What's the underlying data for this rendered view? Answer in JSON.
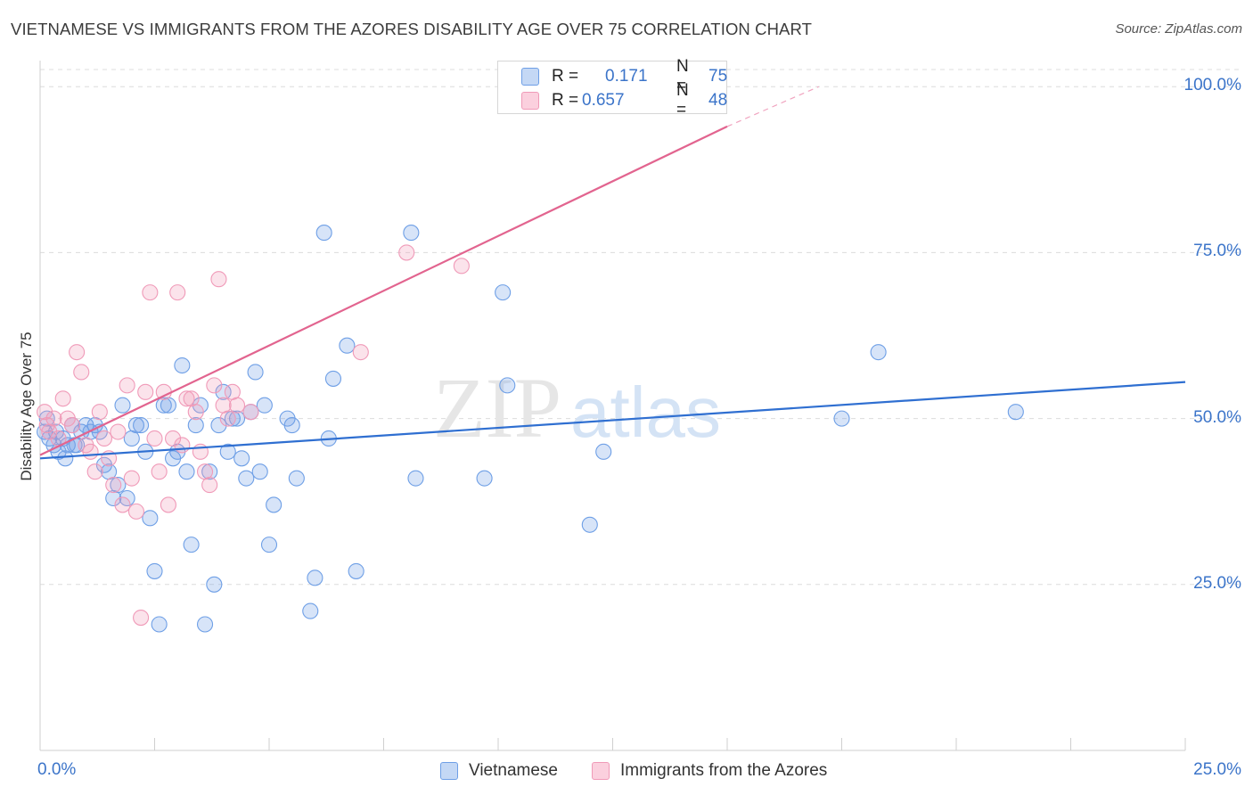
{
  "title": "VIETNAMESE VS IMMIGRANTS FROM THE AZORES DISABILITY AGE OVER 75 CORRELATION CHART",
  "source": "Source: ZipAtlas.com",
  "watermark": {
    "zip": "ZIP",
    "atlas": "atlas"
  },
  "legend": {
    "r_label": "R =",
    "n_label": "N =",
    "series": [
      {
        "name": "Vietnamese",
        "r": "0.171",
        "n": "75",
        "color": "#6e9fe6"
      },
      {
        "name": "Immigrants from the Azores",
        "r": "0.657",
        "n": "48",
        "color": "#f09ab8"
      }
    ]
  },
  "chart_data": {
    "type": "scatter",
    "title": "VIETNAMESE VS IMMIGRANTS FROM THE AZORES DISABILITY AGE OVER 75 CORRELATION CHART",
    "xlabel": "",
    "ylabel": "Disability Age Over 75",
    "xlim": [
      0,
      25
    ],
    "ylim": [
      0,
      105
    ],
    "x_tick_labels": [
      "0.0%",
      "25.0%"
    ],
    "y_ticks": [
      25,
      50,
      75,
      100
    ],
    "y_tick_labels": [
      "25.0%",
      "50.0%",
      "75.0%",
      "100.0%"
    ],
    "grid": true,
    "legend_position": "top-center",
    "series": [
      {
        "name": "Vietnamese",
        "color": "#6e9fe6",
        "trend": {
          "x": [
            0,
            25
          ],
          "y": [
            44,
            55.5
          ]
        },
        "points": [
          [
            0.1,
            48
          ],
          [
            0.2,
            47
          ],
          [
            0.3,
            46
          ],
          [
            0.4,
            45
          ],
          [
            0.5,
            47
          ],
          [
            0.6,
            46
          ],
          [
            0.7,
            49
          ],
          [
            0.8,
            46
          ],
          [
            0.9,
            48
          ],
          [
            1.0,
            49
          ],
          [
            1.1,
            48
          ],
          [
            1.2,
            49
          ],
          [
            1.3,
            48
          ],
          [
            1.4,
            43
          ],
          [
            1.5,
            42
          ],
          [
            1.6,
            38
          ],
          [
            1.7,
            40
          ],
          [
            1.8,
            52
          ],
          [
            1.9,
            38
          ],
          [
            2.0,
            47
          ],
          [
            2.1,
            49
          ],
          [
            2.2,
            49
          ],
          [
            2.3,
            45
          ],
          [
            2.4,
            35
          ],
          [
            2.5,
            27
          ],
          [
            2.6,
            19
          ],
          [
            2.7,
            52
          ],
          [
            2.8,
            52
          ],
          [
            2.9,
            44
          ],
          [
            3.0,
            45
          ],
          [
            3.1,
            58
          ],
          [
            3.2,
            42
          ],
          [
            3.3,
            31
          ],
          [
            3.4,
            49
          ],
          [
            3.5,
            52
          ],
          [
            3.6,
            19
          ],
          [
            3.7,
            42
          ],
          [
            3.8,
            25
          ],
          [
            3.9,
            49
          ],
          [
            4.0,
            54
          ],
          [
            4.1,
            45
          ],
          [
            4.2,
            50
          ],
          [
            4.3,
            50
          ],
          [
            4.4,
            44
          ],
          [
            4.5,
            41
          ],
          [
            4.6,
            51
          ],
          [
            4.7,
            57
          ],
          [
            4.8,
            42
          ],
          [
            4.9,
            52
          ],
          [
            5.0,
            31
          ],
          [
            5.1,
            37
          ],
          [
            5.4,
            50
          ],
          [
            5.5,
            49
          ],
          [
            5.6,
            41
          ],
          [
            5.9,
            21
          ],
          [
            6.0,
            26
          ],
          [
            6.2,
            78
          ],
          [
            6.3,
            47
          ],
          [
            6.4,
            56
          ],
          [
            6.7,
            61
          ],
          [
            6.9,
            27
          ],
          [
            8.1,
            78
          ],
          [
            8.2,
            41
          ],
          [
            9.7,
            41
          ],
          [
            10.1,
            69
          ],
          [
            10.2,
            55
          ],
          [
            12.0,
            34
          ],
          [
            12.3,
            45
          ],
          [
            17.5,
            50
          ],
          [
            18.3,
            60
          ],
          [
            21.3,
            51
          ],
          [
            0.15,
            50
          ],
          [
            0.35,
            48
          ],
          [
            0.55,
            44
          ],
          [
            0.75,
            46
          ]
        ]
      },
      {
        "name": "Immigrants from the Azores",
        "color": "#f09ab8",
        "trend": {
          "x": [
            0,
            15
          ],
          "y": [
            44.5,
            94
          ]
        },
        "trend_dashed": {
          "x": [
            15,
            17
          ],
          "y": [
            94,
            100
          ]
        },
        "points": [
          [
            0.1,
            51
          ],
          [
            0.15,
            49
          ],
          [
            0.2,
            48
          ],
          [
            0.3,
            50
          ],
          [
            0.4,
            47
          ],
          [
            0.5,
            53
          ],
          [
            0.6,
            50
          ],
          [
            0.7,
            49
          ],
          [
            0.8,
            60
          ],
          [
            0.9,
            57
          ],
          [
            1.0,
            46
          ],
          [
            1.1,
            45
          ],
          [
            1.2,
            42
          ],
          [
            1.3,
            51
          ],
          [
            1.4,
            47
          ],
          [
            1.5,
            44
          ],
          [
            1.6,
            40
          ],
          [
            1.7,
            48
          ],
          [
            1.8,
            37
          ],
          [
            1.9,
            55
          ],
          [
            2.0,
            41
          ],
          [
            2.1,
            36
          ],
          [
            2.2,
            20
          ],
          [
            2.3,
            54
          ],
          [
            2.4,
            69
          ],
          [
            2.5,
            47
          ],
          [
            2.6,
            42
          ],
          [
            2.7,
            54
          ],
          [
            2.8,
            37
          ],
          [
            2.9,
            47
          ],
          [
            3.0,
            69
          ],
          [
            3.1,
            46
          ],
          [
            3.2,
            53
          ],
          [
            3.3,
            53
          ],
          [
            3.4,
            51
          ],
          [
            3.5,
            45
          ],
          [
            3.6,
            42
          ],
          [
            3.7,
            40
          ],
          [
            3.8,
            55
          ],
          [
            3.9,
            71
          ],
          [
            4.0,
            52
          ],
          [
            4.1,
            50
          ],
          [
            4.2,
            54
          ],
          [
            4.3,
            52
          ],
          [
            4.6,
            51
          ],
          [
            7.0,
            60
          ],
          [
            8.0,
            75
          ],
          [
            9.2,
            73
          ]
        ]
      }
    ]
  }
}
